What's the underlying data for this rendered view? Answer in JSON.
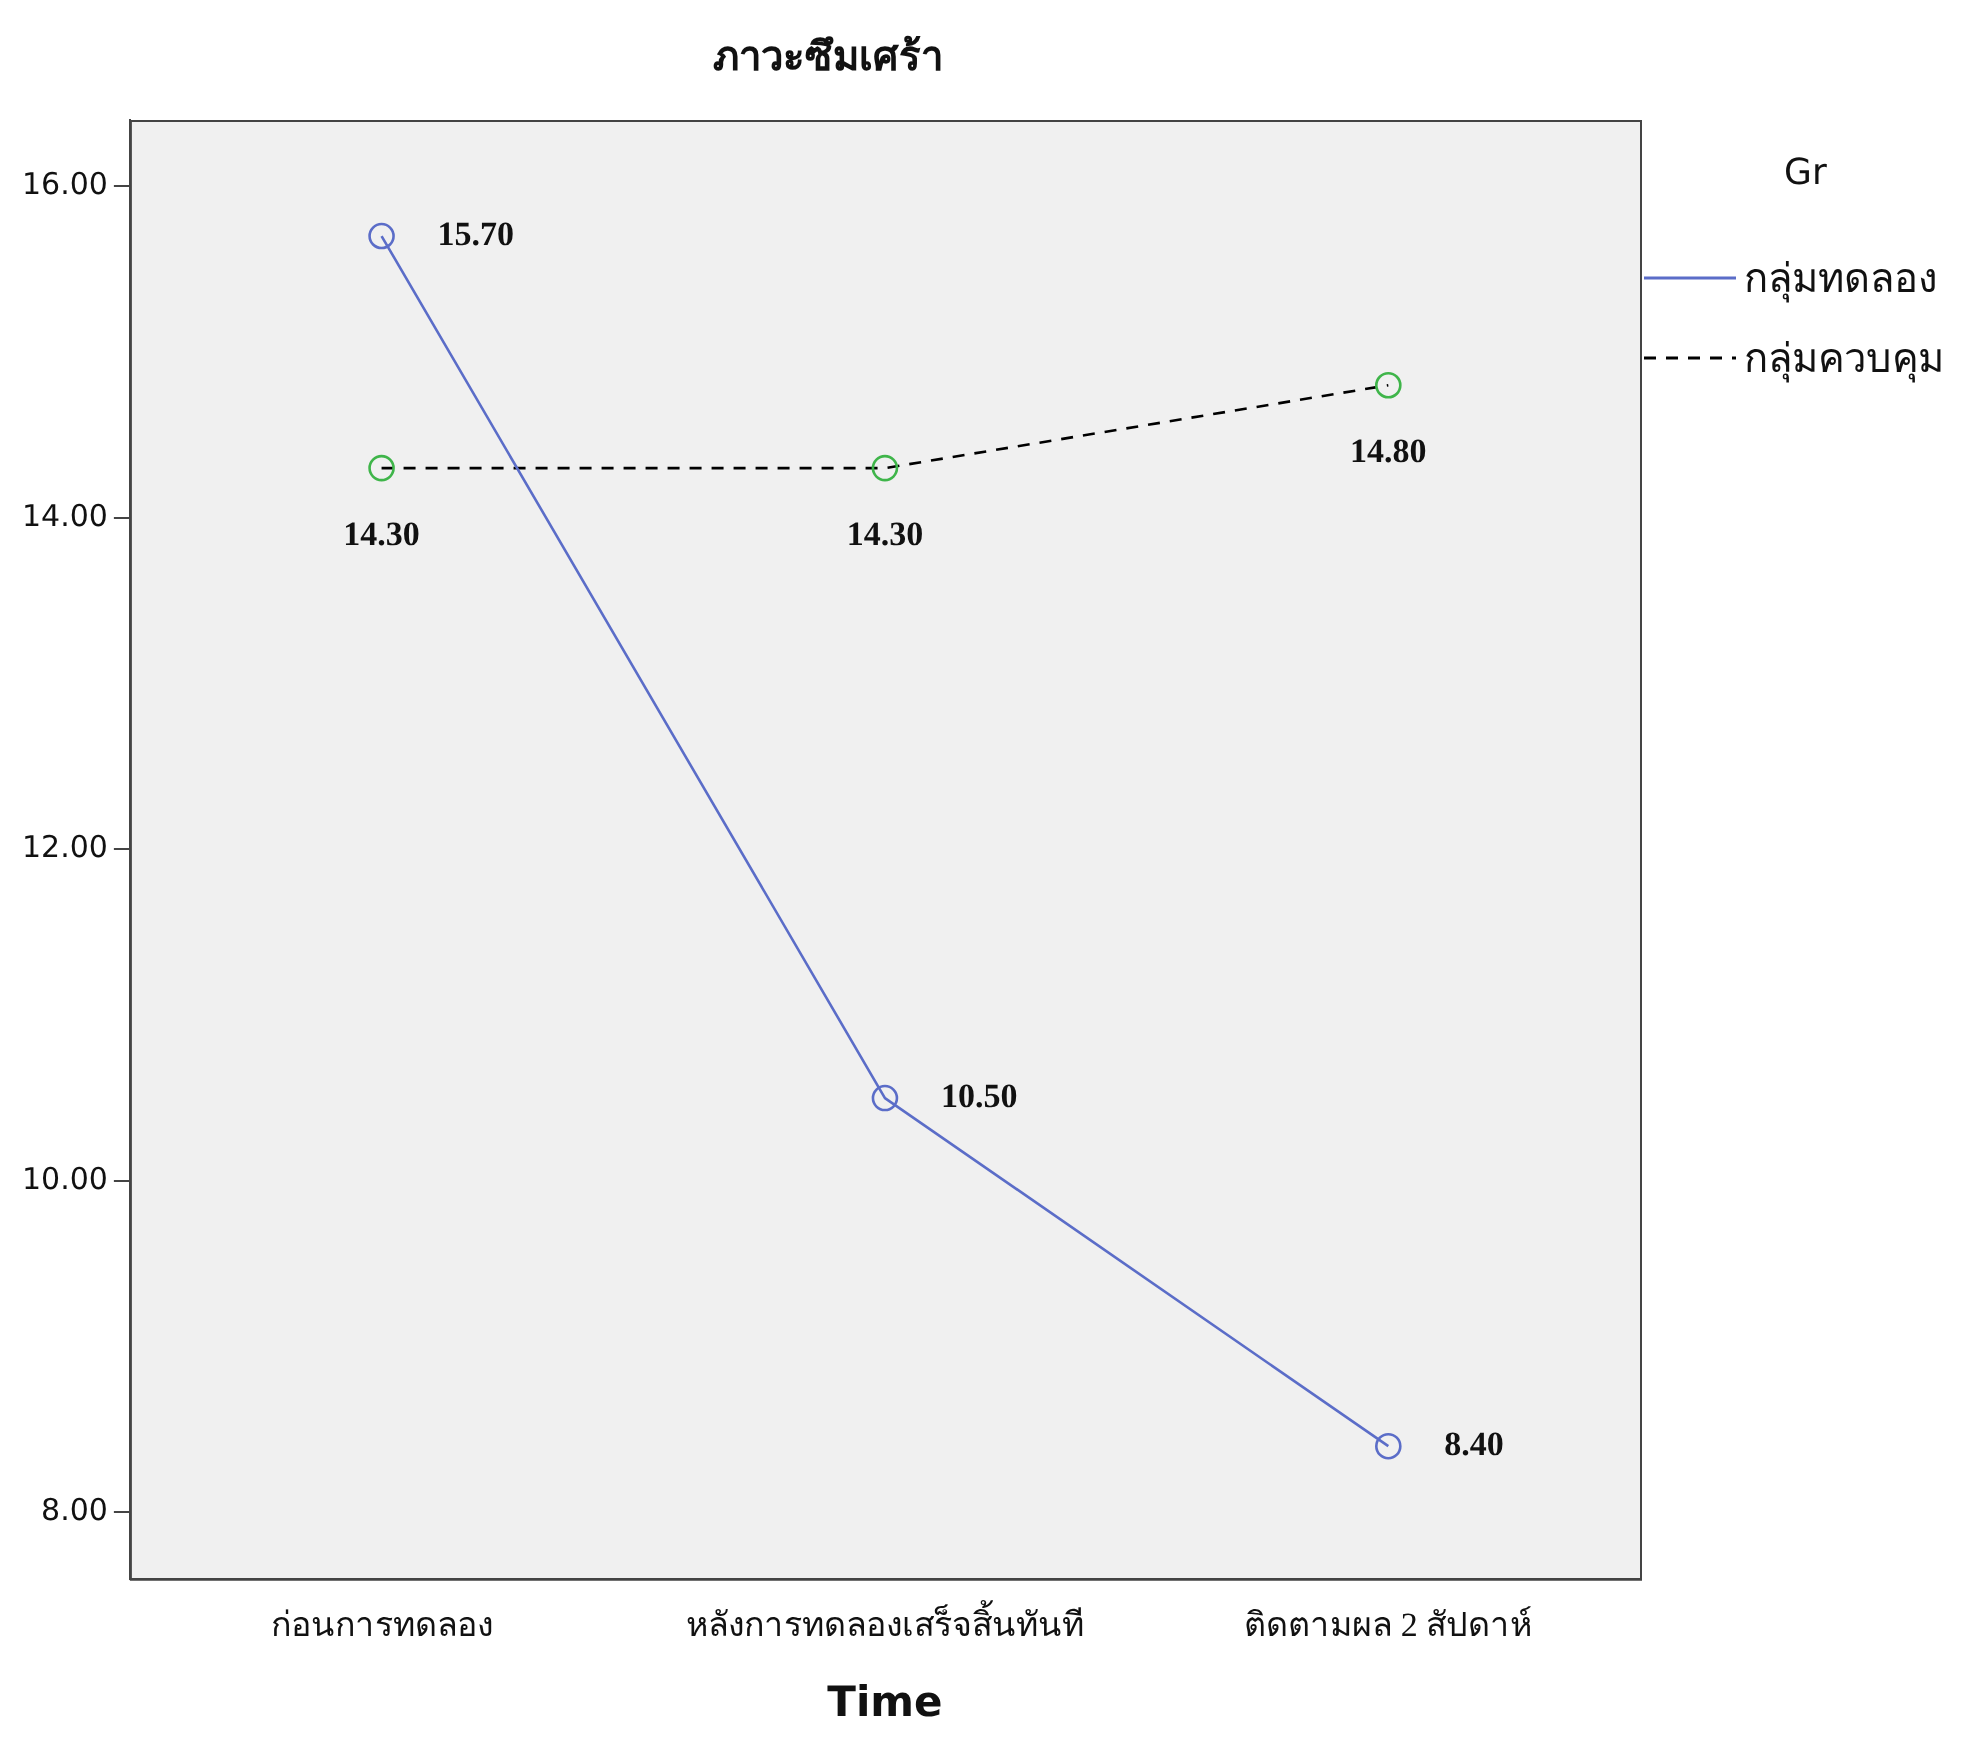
{
  "chart_data": {
    "type": "line",
    "title": "ภาวะซึมเศร้า",
    "xlabel": "Time",
    "legend_title": "Gr",
    "legend": "top right",
    "marker": "circle",
    "grid": false,
    "categories": [
      "ก่อนการทดลอง",
      "หลังการทดลองเสร็จสิ้นทันที",
      "ติดตามผล 2 สัปดาห์"
    ],
    "ylim": [
      7.6,
      16.4
    ],
    "yticks": [
      {
        "value": 8,
        "label": "8.00"
      },
      {
        "value": 10,
        "label": "10.00"
      },
      {
        "value": 12,
        "label": "12.00"
      },
      {
        "value": 14,
        "label": "14.00"
      },
      {
        "value": 16,
        "label": "16.00"
      }
    ],
    "series": [
      {
        "name": "กลุ่มทดลอง",
        "color": "#5b6dc8",
        "line_style": "solid",
        "values": [
          15.7,
          10.5,
          8.4
        ],
        "value_labels": [
          "15.70",
          "10.50",
          "8.40"
        ]
      },
      {
        "name": "กลุ่มควบคุม",
        "color": "#000000",
        "colors": [
          "#3fb54a",
          "#3fb54a",
          "#3fb54a"
        ],
        "line_style": "dashed",
        "values": [
          14.3,
          14.3,
          14.8
        ],
        "value_labels": [
          "14.30",
          "14.30",
          "14.80"
        ]
      }
    ]
  }
}
